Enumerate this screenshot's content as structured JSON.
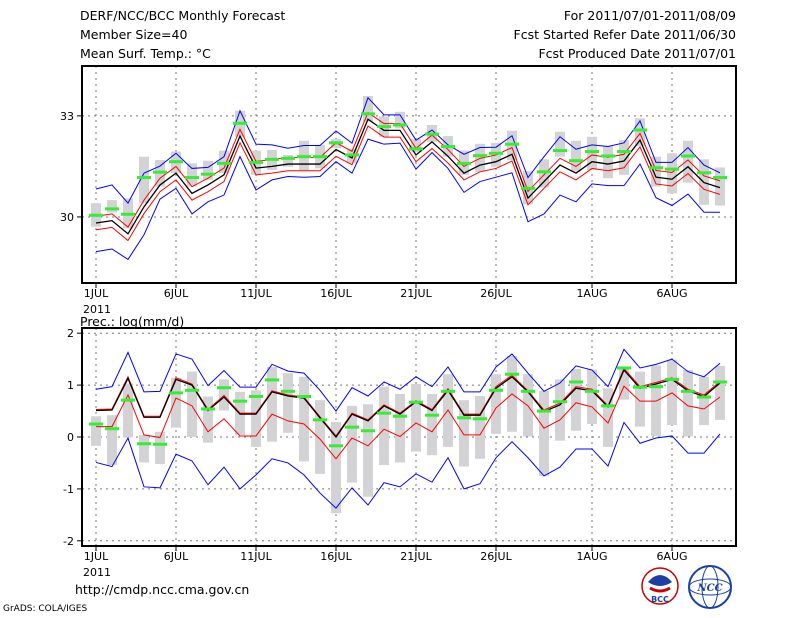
{
  "header": {
    "title": "DERF/NCC/BCC Monthly Forecast",
    "member_size": "Member Size=40",
    "variable": "Mean Surf. Temp.: °C",
    "period": "For 2011/07/01-2011/08/09",
    "started": "Fcst Started Refer Date 2011/06/30",
    "produced": "Fcst Produced Date 2011/07/01"
  },
  "footer": {
    "url": "http://cmdp.ncc.cma.gov.cn",
    "credit": "GrADS: COLA/IGES",
    "logo_bcc": "BCC",
    "logo_ncc": "NCC"
  },
  "colors": {
    "max_min": "#0000ff",
    "quartile": "#ff0000",
    "mean": "#000000",
    "obs": "#33ee33",
    "box": "#d3d3d6",
    "grid": "#777777"
  },
  "chart_data": [
    {
      "type": "line",
      "title": "Mean Surf. Temp.: °C",
      "xlabel": "",
      "ylabel": "",
      "x_tick_labels": [
        "1JUL",
        "6JUL",
        "11JUL",
        "16JUL",
        "21JUL",
        "26JUL",
        "1AUG",
        "6AUG"
      ],
      "x_tick_days": [
        1,
        6,
        11,
        16,
        21,
        26,
        32,
        37
      ],
      "year_label": "2011",
      "y_ticks": [
        33,
        30
      ],
      "ylim": [
        28.04,
        34.48
      ],
      "ndays": 40,
      "grid": true,
      "series": [
        {
          "name": "box_high",
          "values": [
            30.41,
            30.5,
            30.55,
            31.79,
            31.69,
            31.94,
            31.59,
            31.67,
            31.97,
            33.15,
            31.97,
            31.99,
            31.84,
            32.26,
            32.14,
            32.31,
            32.01,
            33.59,
            32.98,
            33.12,
            32.31,
            32.73,
            32.4,
            31.97,
            32.17,
            32.2,
            32.56,
            31.36,
            31.71,
            32.53,
            32.26,
            32.38,
            32.11,
            32.28,
            32.93,
            31.79,
            31.89,
            32.26,
            31.71,
            31.47
          ]
        },
        {
          "name": "box_low",
          "values": [
            29.71,
            30.13,
            29.66,
            30.41,
            30.9,
            31.3,
            30.9,
            31.1,
            31.3,
            32.38,
            31.25,
            31.39,
            31.49,
            31.39,
            31.44,
            32.04,
            31.59,
            32.83,
            32.38,
            32.63,
            31.92,
            32.23,
            31.79,
            31.25,
            31.34,
            31.49,
            31.69,
            30.38,
            30.87,
            31.79,
            31.34,
            31.39,
            31.15,
            31.25,
            32.11,
            30.9,
            30.7,
            31.02,
            30.36,
            30.34
          ]
        },
        {
          "name": "max",
          "values": [
            30.83,
            30.95,
            30.41,
            31.3,
            31.51,
            31.89,
            31.44,
            31.47,
            31.79,
            33.15,
            32.16,
            32.14,
            32.04,
            32.12,
            32.12,
            32.55,
            32.19,
            33.54,
            33.03,
            33.03,
            32.28,
            32.58,
            32.14,
            31.86,
            32.06,
            32.07,
            32.41,
            31.17,
            31.79,
            32.38,
            32.01,
            32.14,
            32.09,
            32.2,
            32.85,
            31.62,
            31.62,
            32.06,
            31.54,
            31.31
          ]
        },
        {
          "name": "min",
          "values": [
            28.97,
            29.05,
            28.74,
            29.47,
            30.53,
            30.85,
            30.09,
            30.45,
            30.65,
            31.79,
            30.8,
            31.1,
            31.2,
            31.18,
            31.2,
            31.64,
            31.3,
            32.31,
            32.16,
            32.19,
            31.42,
            31.91,
            31.44,
            30.73,
            31.05,
            31.18,
            31.31,
            29.86,
            30.09,
            30.65,
            30.45,
            30.98,
            30.93,
            30.93,
            31.57,
            30.57,
            30.34,
            30.68,
            30.14,
            30.14
          ]
        },
        {
          "name": "upper",
          "values": [
            30.02,
            30.09,
            29.7,
            30.5,
            31.15,
            31.5,
            30.9,
            31.15,
            31.45,
            32.6,
            31.65,
            31.7,
            31.77,
            31.77,
            31.77,
            32.2,
            31.95,
            33.1,
            32.77,
            32.77,
            32.04,
            32.43,
            32.0,
            31.5,
            31.74,
            31.84,
            32.06,
            30.76,
            31.25,
            31.74,
            31.5,
            31.84,
            31.77,
            31.86,
            32.48,
            31.38,
            31.32,
            31.69,
            31.22,
            31.07
          ]
        },
        {
          "name": "lower",
          "values": [
            29.62,
            29.69,
            29.3,
            30.1,
            30.75,
            31.1,
            30.5,
            30.75,
            31.05,
            32.2,
            31.25,
            31.3,
            31.37,
            31.37,
            31.37,
            31.8,
            31.55,
            32.7,
            32.37,
            32.37,
            31.64,
            32.03,
            31.6,
            31.1,
            31.34,
            31.44,
            31.66,
            30.36,
            30.85,
            31.34,
            31.1,
            31.44,
            31.37,
            31.46,
            32.08,
            30.98,
            30.92,
            31.29,
            30.82,
            30.67
          ]
        },
        {
          "name": "mean",
          "values": [
            29.82,
            29.89,
            29.5,
            30.3,
            30.95,
            31.3,
            30.7,
            30.95,
            31.25,
            32.4,
            31.45,
            31.5,
            31.57,
            31.57,
            31.57,
            32.0,
            31.75,
            32.9,
            32.57,
            32.57,
            31.84,
            32.23,
            31.8,
            31.3,
            31.54,
            31.64,
            31.86,
            30.56,
            31.05,
            31.54,
            31.3,
            31.64,
            31.57,
            31.66,
            32.28,
            31.18,
            31.12,
            31.49,
            31.02,
            30.87
          ]
        },
        {
          "name": "obs",
          "values": [
            30.05,
            30.24,
            30.08,
            31.17,
            31.33,
            31.64,
            31.17,
            31.27,
            31.59,
            32.78,
            31.62,
            31.71,
            31.74,
            31.79,
            31.79,
            32.2,
            31.84,
            33.06,
            32.68,
            32.73,
            32.02,
            32.46,
            32.09,
            31.59,
            31.82,
            31.89,
            32.16,
            30.85,
            31.34,
            31.97,
            31.67,
            31.94,
            31.81,
            31.94,
            32.58,
            31.46,
            31.42,
            31.81,
            31.31,
            31.17
          ]
        }
      ]
    },
    {
      "type": "line",
      "title": "Prec.: log(mm/d)",
      "xlabel": "",
      "ylabel": "",
      "x_tick_labels": [
        "1JUL",
        "6JUL",
        "11JUL",
        "16JUL",
        "21JUL",
        "26JUL",
        "1AUG",
        "6AUG"
      ],
      "x_tick_days": [
        1,
        6,
        11,
        16,
        21,
        26,
        32,
        37
      ],
      "year_label": "2011",
      "y_ticks": [
        2,
        1,
        0,
        -1,
        -2
      ],
      "ylim": [
        -2.1,
        2.1
      ],
      "ndays": 40,
      "grid": true,
      "series": [
        {
          "name": "box_high",
          "values": [
            0.4,
            0.42,
            1.03,
            0.04,
            0.1,
            1.14,
            1.26,
            0.78,
            1.11,
            0.87,
            0.9,
            1.35,
            1.23,
            1.16,
            0.71,
            0.29,
            0.6,
            0.63,
            0.97,
            0.83,
            1.02,
            0.83,
            1.21,
            0.71,
            0.79,
            1.21,
            1.56,
            1.21,
            0.89,
            1.11,
            1.31,
            1.3,
            0.94,
            1.35,
            1.26,
            1.38,
            1.49,
            1.29,
            1.16,
            1.37
          ]
        },
        {
          "name": "box_low",
          "values": [
            -0.17,
            -0.54,
            -0.01,
            -0.49,
            -0.52,
            0.18,
            0.0,
            -0.11,
            0.51,
            0.04,
            -0.19,
            -0.09,
            0.08,
            -0.47,
            -0.71,
            -1.47,
            -0.88,
            -1.15,
            -0.54,
            -0.49,
            -0.28,
            -0.35,
            -0.19,
            -0.57,
            -0.42,
            0.06,
            0.1,
            0.01,
            -0.75,
            -0.07,
            0.12,
            0.25,
            -0.19,
            0.72,
            0.2,
            0.02,
            0.23,
            0.01,
            0.23,
            0.33
          ]
        },
        {
          "name": "max",
          "values": [
            0.92,
            0.97,
            1.63,
            0.87,
            0.88,
            1.6,
            1.5,
            0.99,
            1.28,
            0.96,
            0.96,
            1.4,
            1.27,
            1.23,
            0.9,
            0.5,
            0.95,
            0.79,
            1.06,
            0.92,
            1.16,
            0.97,
            1.35,
            0.87,
            0.87,
            1.35,
            1.6,
            1.23,
            0.88,
            1.04,
            1.37,
            1.29,
            0.97,
            1.69,
            1.33,
            1.4,
            1.5,
            1.26,
            1.16,
            1.42
          ]
        },
        {
          "name": "min",
          "values": [
            -0.49,
            -0.57,
            -0.02,
            -0.96,
            -0.98,
            -0.33,
            -0.46,
            -0.92,
            -0.58,
            -1.0,
            -0.73,
            -0.42,
            -0.5,
            -0.73,
            -1.08,
            -1.37,
            -0.98,
            -1.31,
            -0.88,
            -0.96,
            -0.71,
            -0.87,
            -0.4,
            -1.0,
            -0.9,
            -0.4,
            -0.09,
            -0.4,
            -0.75,
            -0.58,
            -0.23,
            -0.23,
            -0.56,
            0.28,
            -0.12,
            -0.02,
            0.02,
            -0.31,
            -0.31,
            0.06
          ]
        },
        {
          "name": "upper",
          "values": [
            0.53,
            0.54,
            1.16,
            0.4,
            0.4,
            1.14,
            1.02,
            0.53,
            0.8,
            0.46,
            0.46,
            0.89,
            0.81,
            0.77,
            0.39,
            0.02,
            0.46,
            0.33,
            0.62,
            0.46,
            0.7,
            0.53,
            0.93,
            0.44,
            0.44,
            0.97,
            1.19,
            0.89,
            0.52,
            0.65,
            0.97,
            0.92,
            0.6,
            1.32,
            0.97,
            1.05,
            1.14,
            0.92,
            0.81,
            1.07
          ]
        },
        {
          "name": "lower",
          "values": [
            0.2,
            0.2,
            0.81,
            0.04,
            -0.01,
            0.75,
            0.6,
            0.1,
            0.35,
            0.02,
            0.02,
            0.44,
            0.31,
            0.25,
            -0.04,
            -0.42,
            -0.02,
            -0.17,
            0.15,
            0.01,
            0.27,
            0.1,
            0.52,
            0.04,
            0.04,
            0.56,
            0.83,
            0.6,
            0.17,
            0.33,
            0.66,
            0.58,
            0.27,
            0.98,
            0.69,
            0.69,
            0.85,
            0.6,
            0.54,
            0.77
          ]
        },
        {
          "name": "mean",
          "values": [
            0.51,
            0.52,
            1.13,
            0.38,
            0.38,
            1.11,
            1.0,
            0.51,
            0.77,
            0.44,
            0.44,
            0.87,
            0.79,
            0.75,
            0.37,
            0.0,
            0.44,
            0.31,
            0.6,
            0.44,
            0.68,
            0.51,
            0.9,
            0.42,
            0.42,
            0.94,
            1.16,
            0.87,
            0.49,
            0.62,
            0.94,
            0.89,
            0.58,
            1.29,
            0.94,
            1.02,
            1.11,
            0.89,
            0.78,
            1.04
          ]
        },
        {
          "name": "obs",
          "values": [
            0.25,
            0.16,
            0.71,
            -0.13,
            -0.14,
            0.85,
            0.9,
            0.54,
            0.95,
            0.69,
            0.78,
            1.1,
            0.88,
            0.78,
            0.33,
            -0.17,
            0.19,
            0.12,
            0.46,
            0.4,
            0.67,
            0.42,
            0.88,
            0.37,
            0.35,
            0.9,
            1.21,
            0.88,
            0.5,
            0.68,
            1.06,
            0.88,
            0.6,
            1.33,
            0.96,
            0.97,
            1.11,
            0.88,
            0.77,
            1.06
          ]
        }
      ]
    }
  ]
}
